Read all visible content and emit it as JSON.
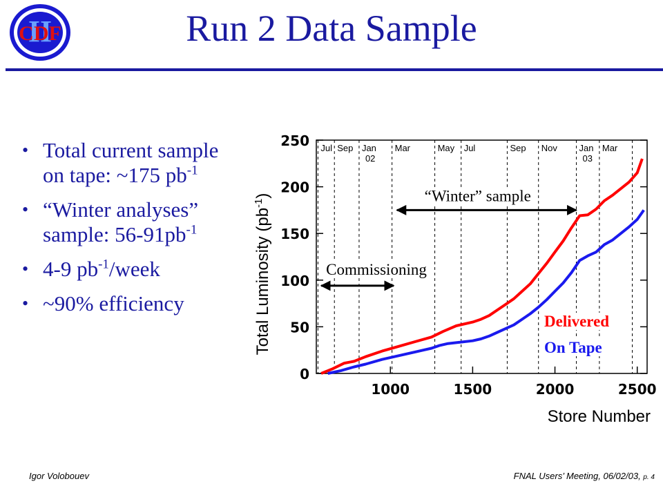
{
  "header": {
    "logo_text": "CDF",
    "logo_numeral": "II",
    "title": "Run 2 Data Sample"
  },
  "bullets": [
    {
      "pre": "Total current sample on tape: ~175 pb",
      "sup": "-1",
      "post": ""
    },
    {
      "pre": "“Winter analyses” sample: 56-91pb",
      "sup": "-1",
      "post": ""
    },
    {
      "pre": "4-9 pb",
      "sup": "-1",
      "post": "/week"
    },
    {
      "pre": "~90% efficiency",
      "sup": "",
      "post": ""
    }
  ],
  "footer": {
    "author": "Igor Volobouev",
    "meeting": "FNAL Users’ Meeting, 06/02/03,",
    "page": "p. 4"
  },
  "colors": {
    "title": "#1a1aa0",
    "delivered": "#ff0000",
    "on_tape": "#1a1aee"
  },
  "chart_data": {
    "type": "line",
    "ylabel": "Total Luminosity (pb",
    "ylabel_sup": "-1",
    "ylabel_close": ")",
    "xlabel": "Store Number",
    "xlim": [
      550,
      2560
    ],
    "ylim": [
      0,
      250
    ],
    "x_ticks": [
      1000,
      1500,
      2000,
      2500
    ],
    "y_ticks": [
      0,
      50,
      100,
      150,
      200,
      250
    ],
    "grid": false,
    "months": [
      {
        "x": 560,
        "label": "Jul",
        "label2": ""
      },
      {
        "x": 660,
        "label": "Sep",
        "label2": ""
      },
      {
        "x": 810,
        "label": "Jan",
        "label2": "02"
      },
      {
        "x": 1010,
        "label": "Mar",
        "label2": ""
      },
      {
        "x": 1270,
        "label": "May",
        "label2": ""
      },
      {
        "x": 1430,
        "label": "Jul",
        "label2": ""
      },
      {
        "x": 1710,
        "label": "Sep",
        "label2": ""
      },
      {
        "x": 1900,
        "label": "Nov",
        "label2": ""
      },
      {
        "x": 2130,
        "label": "Jan",
        "label2": "03"
      },
      {
        "x": 2270,
        "label": "Mar",
        "label2": ""
      },
      {
        "x": 2470,
        "label": "",
        "label2": ""
      }
    ],
    "series": [
      {
        "name": "Delivered",
        "color": "#ff0000",
        "x": [
          580,
          650,
          720,
          780,
          850,
          950,
          1050,
          1150,
          1250,
          1320,
          1400,
          1500,
          1550,
          1600,
          1650,
          1700,
          1750,
          1800,
          1850,
          1900,
          1950,
          2000,
          2050,
          2100,
          2150,
          2200,
          2250,
          2300,
          2350,
          2400,
          2450,
          2500,
          2530
        ],
        "y": [
          0,
          5,
          11,
          13,
          18,
          24,
          29,
          34,
          39,
          45,
          51,
          55,
          58,
          62,
          68,
          74,
          80,
          88,
          96,
          107,
          118,
          130,
          142,
          156,
          169,
          170,
          176,
          185,
          191,
          198,
          205,
          215,
          230
        ]
      },
      {
        "name": "On Tape",
        "color": "#1a1aee",
        "x": [
          620,
          700,
          780,
          850,
          950,
          1050,
          1150,
          1250,
          1300,
          1350,
          1400,
          1500,
          1550,
          1600,
          1650,
          1700,
          1750,
          1800,
          1850,
          1900,
          1950,
          2000,
          2050,
          2100,
          2150,
          2200,
          2250,
          2300,
          2350,
          2400,
          2450,
          2500,
          2540
        ],
        "y": [
          0,
          3,
          7,
          10,
          15,
          19,
          23,
          27,
          30,
          32,
          33,
          35,
          37,
          40,
          44,
          48,
          52,
          58,
          64,
          71,
          79,
          88,
          97,
          108,
          121,
          126,
          130,
          138,
          143,
          150,
          157,
          165,
          175
        ]
      }
    ],
    "annotations": [
      {
        "text": "“Winter” sample",
        "x_from": 1040,
        "x_to": 2130,
        "y": 175
      },
      {
        "text": "Commissioning",
        "x_from": 580,
        "x_to": 1020,
        "y": 94
      }
    ],
    "legend": [
      {
        "text": "Delivered",
        "color": "#ff0000"
      },
      {
        "text": "On Tape",
        "color": "#1a1aee"
      }
    ],
    "legend_position": "bottom-right"
  }
}
